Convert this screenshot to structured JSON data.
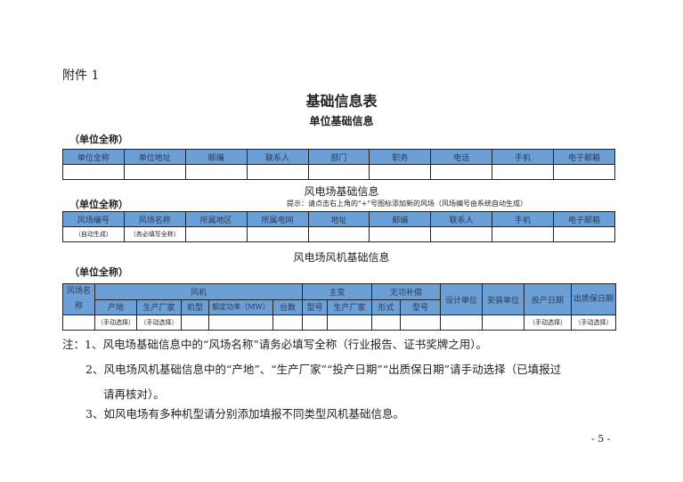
{
  "attachment": "附件 1",
  "title": "基础信息表",
  "unit_label": "（单位全称）",
  "section1": {
    "title": "单位基础信息",
    "headers": [
      "单位全称",
      "单位地址",
      "邮编",
      "联系人",
      "部门",
      "职务",
      "电话",
      "手机",
      "电子邮箱"
    ]
  },
  "section2": {
    "title": "风电场基础信息",
    "hint": "提示：请点击右上角的\"+\"号图标添加新的风场（风场编号由系统自动生成）",
    "headers": [
      "风场编号",
      "风场名称",
      "所属地区",
      "所属电网",
      "地址",
      "邮编",
      "联系人",
      "手机",
      "电子邮箱"
    ],
    "row": [
      "（自动生成）",
      "（务必填写全称）"
    ]
  },
  "section3": {
    "title": "风电场风机基础信息",
    "group_headers": {
      "farm_name": "风场名称",
      "turbine": "风机",
      "transformer": "主变",
      "reactive": "无功补偿",
      "design": "设计单位",
      "install": "安装单位",
      "commission": "投产日期",
      "warranty": "出质保日期"
    },
    "sub_headers": [
      "产地",
      "生产厂家",
      "机型",
      "额定功率（MW）",
      "台数",
      "型号",
      "生产厂家",
      "形式",
      "型号"
    ],
    "manual": "（手动选择）"
  },
  "notes": [
    "注：1、风电场基础信息中的“风场名称”请务必填写全称（行业报告、证书奖牌之用）。",
    "2、风电场风机基础信息中的“产地”、“生产厂家”“投产日期”“出质保日期”请手动选择（已填报过",
    "请再核对）。",
    "3、如风电场有多种机型请分别添加填报不同类型风机基础信息。"
  ],
  "page_number": "- 5 -"
}
